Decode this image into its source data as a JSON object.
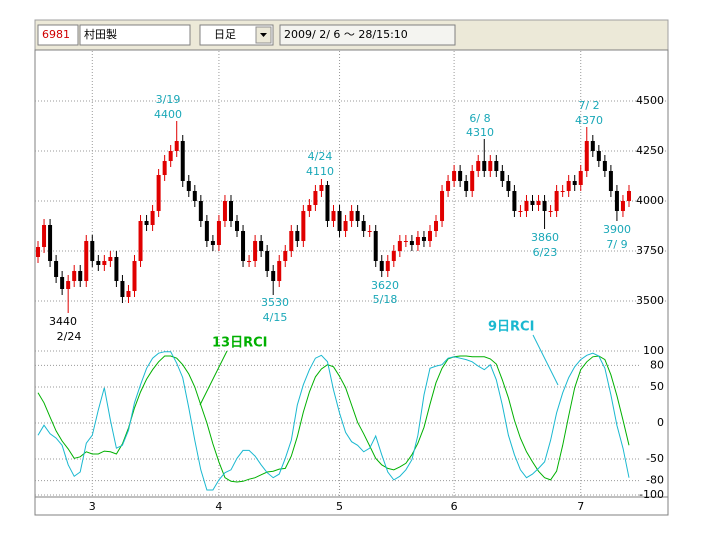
{
  "toolbar": {
    "code": "6981",
    "name": "村田製",
    "period": "日足",
    "datetime": "2009/ 2/ 6 ～ 28/15:10"
  },
  "chart_data": [
    {
      "type": "candlestick",
      "open": [
        3720,
        3770,
        3880,
        3700,
        3620,
        3560,
        3600,
        3650,
        3600,
        3800,
        3700,
        3680,
        3700,
        3720,
        3600,
        3520,
        3550,
        3700,
        3900,
        3880,
        3950,
        4130,
        4200,
        4250,
        4300,
        4100,
        4050,
        4000,
        3900,
        3800,
        3780,
        3900,
        4000,
        3900,
        3850,
        3700,
        3700,
        3800,
        3750,
        3650,
        3600,
        3700,
        3750,
        3850,
        3800,
        3950,
        3980,
        4050,
        4080,
        3900,
        3950,
        3850,
        3900,
        3950,
        3900,
        3850,
        3850,
        3700,
        3650,
        3700,
        3750,
        3800,
        3800,
        3780,
        3820,
        3800,
        3850,
        3900,
        4050,
        4100,
        4150,
        4100,
        4050,
        4150,
        4200,
        4150,
        4200,
        4150,
        4100,
        4050,
        3950,
        3950,
        4000,
        3980,
        4000,
        3950,
        3950,
        4050,
        4050,
        4100,
        4080,
        4150,
        4300,
        4250,
        4200,
        4150,
        4050,
        3950,
        4000
      ],
      "high": [
        3800,
        3910,
        3910,
        3730,
        3650,
        3630,
        3680,
        3680,
        3830,
        3830,
        3730,
        3730,
        3750,
        3750,
        3630,
        3580,
        3730,
        3930,
        3930,
        3980,
        4160,
        4230,
        4280,
        4400,
        4330,
        4130,
        4080,
        4030,
        3930,
        3830,
        3930,
        4030,
        4030,
        3930,
        3880,
        3730,
        3830,
        3830,
        3780,
        3680,
        3730,
        3780,
        3880,
        3880,
        3980,
        4010,
        4080,
        4110,
        4100,
        3980,
        3980,
        3930,
        3980,
        3980,
        3930,
        3880,
        3880,
        3730,
        3730,
        3780,
        3830,
        3830,
        3830,
        3850,
        3850,
        3880,
        3930,
        4080,
        4130,
        4180,
        4180,
        4130,
        4180,
        4230,
        4310,
        4230,
        4230,
        4180,
        4130,
        4080,
        3980,
        4030,
        4030,
        4030,
        4030,
        3980,
        4080,
        4080,
        4130,
        4130,
        4180,
        4370,
        4330,
        4280,
        4230,
        4180,
        4080,
        4030,
        4080
      ],
      "low": [
        3690,
        3740,
        3670,
        3590,
        3530,
        3440,
        3570,
        3570,
        3570,
        3670,
        3650,
        3650,
        3670,
        3570,
        3490,
        3490,
        3520,
        3670,
        3850,
        3850,
        3920,
        4100,
        4170,
        4220,
        4070,
        4020,
        3970,
        3870,
        3770,
        3750,
        3750,
        3870,
        3870,
        3820,
        3670,
        3670,
        3670,
        3720,
        3620,
        3530,
        3570,
        3670,
        3720,
        3770,
        3770,
        3920,
        3950,
        4020,
        3870,
        3870,
        3820,
        3820,
        3870,
        3870,
        3820,
        3820,
        3670,
        3620,
        3620,
        3670,
        3720,
        3770,
        3750,
        3750,
        3770,
        3770,
        3820,
        3870,
        4020,
        4070,
        4070,
        4020,
        4020,
        4120,
        4120,
        4120,
        4120,
        4070,
        4020,
        3920,
        3920,
        3920,
        3950,
        3950,
        3860,
        3920,
        3920,
        4020,
        4020,
        4050,
        4050,
        4120,
        4220,
        4170,
        4120,
        4020,
        3900,
        3920,
        3970
      ],
      "close": [
        3770,
        3880,
        3700,
        3620,
        3560,
        3600,
        3650,
        3600,
        3800,
        3700,
        3680,
        3700,
        3720,
        3600,
        3520,
        3550,
        3700,
        3900,
        3880,
        3950,
        4130,
        4200,
        4250,
        4300,
        4100,
        4050,
        4000,
        3900,
        3800,
        3780,
        3900,
        4000,
        3900,
        3850,
        3700,
        3700,
        3800,
        3750,
        3650,
        3600,
        3700,
        3750,
        3850,
        3800,
        3950,
        3980,
        4050,
        4080,
        3900,
        3950,
        3850,
        3900,
        3950,
        3900,
        3850,
        3850,
        3700,
        3650,
        3700,
        3750,
        3800,
        3800,
        3780,
        3820,
        3800,
        3850,
        3900,
        4050,
        4100,
        4150,
        4100,
        4050,
        4150,
        4200,
        4150,
        4200,
        4150,
        4100,
        4050,
        3950,
        3950,
        4000,
        3980,
        4000,
        3950,
        3950,
        4050,
        4050,
        4100,
        4080,
        4150,
        4300,
        4250,
        4200,
        4150,
        4050,
        3950,
        4000,
        4050
      ],
      "up_color": "#e00000",
      "down_color": "#000000",
      "ylim": [
        3300,
        4750
      ],
      "yticks": [
        3500,
        3750,
        4000,
        4250,
        4500
      ],
      "grid": true,
      "annotations": [
        {
          "value": 3440,
          "date": "2/24"
        },
        {
          "value": 4400,
          "date": "3/19"
        },
        {
          "value": 3530,
          "date": "4/15"
        },
        {
          "value": 4110,
          "date": "4/24"
        },
        {
          "value": 3620,
          "date": "5/18"
        },
        {
          "value": 4310,
          "date": "6/ 8"
        },
        {
          "value": 3860,
          "date": "6/23"
        },
        {
          "value": 4370,
          "date": "7/ 2"
        },
        {
          "value": 3900,
          "date": "7/ 9"
        }
      ],
      "annotation_color": "#1aa8b8"
    },
    {
      "type": "line",
      "categories": [
        null,
        null,
        null,
        null,
        null,
        null,
        null,
        null,
        null,
        "3",
        null,
        null,
        null,
        null,
        null,
        null,
        null,
        null,
        null,
        null,
        null,
        null,
        null,
        null,
        null,
        null,
        null,
        null,
        null,
        null,
        "4",
        null,
        null,
        null,
        null,
        null,
        null,
        null,
        null,
        null,
        null,
        null,
        null,
        null,
        null,
        null,
        null,
        null,
        null,
        null,
        "5",
        null,
        null,
        null,
        null,
        null,
        null,
        null,
        null,
        null,
        null,
        null,
        null,
        null,
        null,
        null,
        null,
        null,
        null,
        "6",
        null,
        null,
        null,
        null,
        null,
        null,
        null,
        null,
        null,
        null,
        null,
        null,
        null,
        null,
        null,
        null,
        null,
        null,
        null,
        null,
        "7",
        null,
        null,
        null,
        null,
        null,
        null,
        null,
        null
      ],
      "series": [
        {
          "name": "13日RCI",
          "color": "#00b000",
          "values": [
            42,
            28,
            8,
            -11,
            -25,
            -36,
            -49,
            -47,
            -40,
            -43,
            -43,
            -39,
            -40,
            -43,
            -29,
            -7,
            21,
            43,
            61,
            74,
            85,
            93,
            93,
            90,
            81,
            68,
            50,
            25,
            0,
            -29,
            -54,
            -76,
            -81,
            -82,
            -81,
            -78,
            -76,
            -72,
            -68,
            -67,
            -64,
            -63,
            -46,
            -19,
            15,
            43,
            64,
            75,
            81,
            78,
            65,
            49,
            25,
            1,
            -15,
            -32,
            -49,
            -58,
            -63,
            -65,
            -61,
            -56,
            -44,
            -28,
            -6,
            26,
            56,
            76,
            89,
            92,
            93,
            93,
            92,
            92,
            92,
            89,
            82,
            60,
            35,
            4,
            -21,
            -40,
            -54,
            -67,
            -76,
            -79,
            -67,
            -31,
            10,
            49,
            74,
            85,
            92,
            93,
            88,
            67,
            38,
            4,
            -31
          ]
        },
        {
          "name": "9日RCI",
          "color": "#1ab8d0",
          "values": [
            -17,
            -3,
            -15,
            -21,
            -31,
            -58,
            -74,
            -68,
            -28,
            -17,
            18,
            49,
            4,
            -35,
            -31,
            -10,
            28,
            53,
            76,
            90,
            97,
            99,
            99,
            83,
            63,
            21,
            -24,
            -65,
            -93,
            -93,
            -79,
            -69,
            -65,
            -49,
            -38,
            -38,
            -46,
            -58,
            -69,
            -76,
            -71,
            -49,
            -24,
            25,
            53,
            74,
            90,
            94,
            85,
            46,
            14,
            -13,
            -26,
            -31,
            -40,
            -35,
            -18,
            -44,
            -68,
            -79,
            -74,
            -65,
            -51,
            -17,
            39,
            76,
            79,
            81,
            90,
            92,
            90,
            88,
            85,
            79,
            74,
            81,
            60,
            25,
            -17,
            -44,
            -65,
            -76,
            -71,
            -63,
            -54,
            -24,
            14,
            42,
            63,
            78,
            88,
            94,
            97,
            93,
            76,
            39,
            -3,
            -35,
            -76
          ]
        }
      ],
      "ylim": [
        -100,
        100
      ],
      "yticks": [
        100,
        80,
        50,
        0,
        -50,
        -80,
        -100
      ],
      "grid": true
    }
  ]
}
